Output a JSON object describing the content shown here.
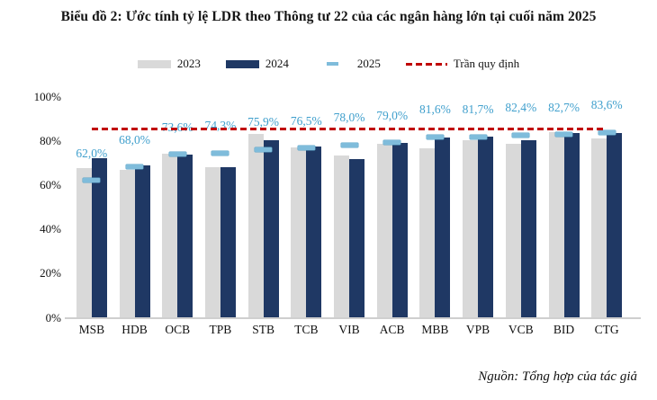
{
  "title": "Biểu đồ 2: Ước tính tỷ lệ LDR theo Thông tư 22 của các ngân hàng lớn tại cuối năm 2025",
  "source": "Nguồn: Tổng hợp của tác giả",
  "legend": {
    "items": [
      {
        "label": "2023",
        "swatch": "bar-gray"
      },
      {
        "label": "2024",
        "swatch": "bar-navy"
      },
      {
        "label": "2025",
        "swatch": "dash-blue"
      },
      {
        "label": "Trần quy định",
        "swatch": "dashed-red-line"
      }
    ]
  },
  "colors": {
    "bar_2023": "#d9d9d9",
    "bar_2024": "#1f3864",
    "marker_2025": "#7fbcdb",
    "marker_border": "#5ba4c8",
    "label_2025": "#41a0cd",
    "ceiling_red": "#c00000",
    "axis_gray": "#cfcfcf"
  },
  "chart_data": {
    "type": "bar",
    "title": "Biểu đồ 2: Ước tính tỷ lệ LDR theo Thông tư 22 của các ngân hàng lớn tại cuối năm 2025",
    "categories": [
      "MSB",
      "HDB",
      "OCB",
      "TPB",
      "STB",
      "TCB",
      "VIB",
      "ACB",
      "MBB",
      "VPB",
      "VCB",
      "BID",
      "CTG"
    ],
    "series": [
      {
        "name": "2023",
        "render": "bar",
        "values": [
          67.5,
          66.5,
          74.0,
          68.0,
          83.0,
          77.0,
          73.0,
          78.3,
          76.5,
          80.0,
          78.3,
          83.7,
          81.0
        ]
      },
      {
        "name": "2024",
        "render": "bar",
        "values": [
          72.0,
          68.7,
          73.5,
          68.0,
          80.3,
          77.3,
          71.5,
          78.7,
          81.4,
          81.8,
          80.3,
          83.4,
          83.4
        ]
      },
      {
        "name": "2025",
        "render": "marker",
        "values": [
          62.0,
          68.0,
          73.6,
          74.3,
          75.9,
          76.5,
          78.0,
          79.0,
          81.6,
          81.7,
          82.4,
          82.7,
          83.6
        ],
        "labels": [
          "62,0%",
          "68,0%",
          "73,6%",
          "74,3%",
          "75,9%",
          "76,5%",
          "78,0%",
          "79,0%",
          "81,6%",
          "81,7%",
          "82,4%",
          "82,7%",
          "83,6%"
        ]
      },
      {
        "name": "Trần quy định",
        "render": "hline",
        "value": 85
      }
    ],
    "xlabel": "",
    "ylabel": "",
    "ylim": [
      0,
      100
    ],
    "yticks": [
      {
        "value": 0,
        "label": "0%"
      },
      {
        "value": 20,
        "label": "20%"
      },
      {
        "value": 40,
        "label": "40%"
      },
      {
        "value": 60,
        "label": "60%"
      },
      {
        "value": 80,
        "label": "80%"
      },
      {
        "value": 100,
        "label": "100%"
      }
    ],
    "grid": false,
    "legend_position": "top-center"
  }
}
